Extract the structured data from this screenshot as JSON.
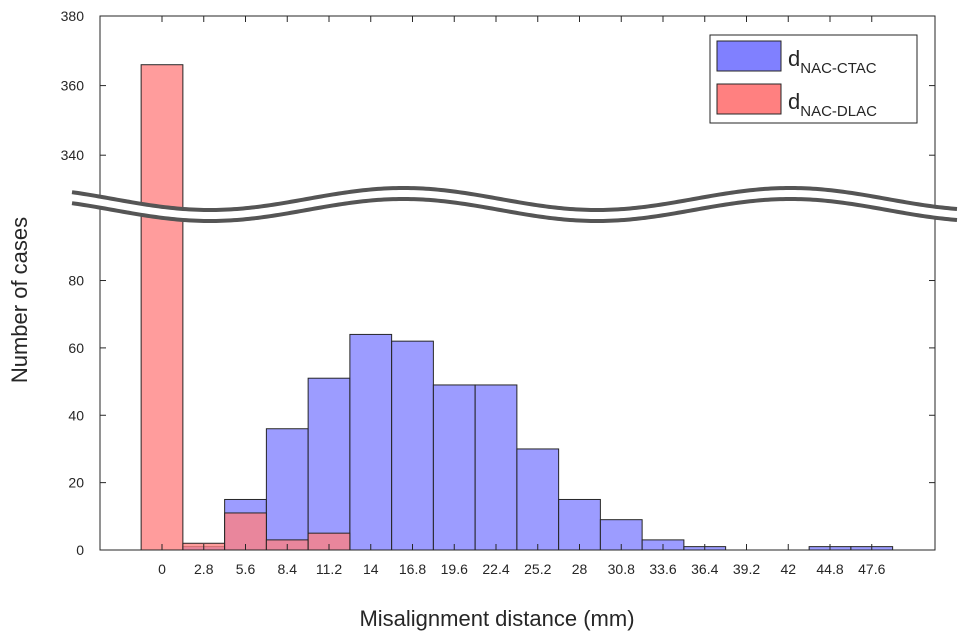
{
  "chart_data": {
    "type": "bar",
    "xlabel": "Misalignment distance (mm)",
    "ylabel": "Number of cases",
    "categories": [
      "0",
      "2.8",
      "5.6",
      "8.4",
      "11.2",
      "14",
      "16.8",
      "19.6",
      "22.4",
      "25.2",
      "28",
      "30.8",
      "33.6",
      "36.4",
      "39.2",
      "42",
      "44.8",
      "47.6"
    ],
    "y_ticks_lower": [
      "0",
      "20",
      "40",
      "60",
      "80"
    ],
    "y_ticks_upper": [
      "340",
      "360",
      "380"
    ],
    "ylim_lower": [
      0,
      95
    ],
    "ylim_upper": [
      330,
      380
    ],
    "axis_break": "wavy",
    "grid": false,
    "legend_position": "top-right",
    "series": [
      {
        "name": "NAC-CTAC",
        "legend_main": "d",
        "legend_sub": "NAC-CTAC",
        "color": "#8080ff",
        "values": [
          0,
          1,
          15,
          36,
          51,
          64,
          62,
          49,
          49,
          30,
          15,
          9,
          3,
          1,
          0,
          0,
          1,
          1
        ]
      },
      {
        "name": "NAC-DLAC",
        "legend_main": "d",
        "legend_sub": "NAC-DLAC",
        "color": "#ff8080",
        "values": [
          366,
          2,
          11,
          3,
          5,
          0,
          0,
          0,
          0,
          0,
          0,
          0,
          0,
          0,
          0,
          0,
          0,
          0
        ]
      }
    ]
  }
}
